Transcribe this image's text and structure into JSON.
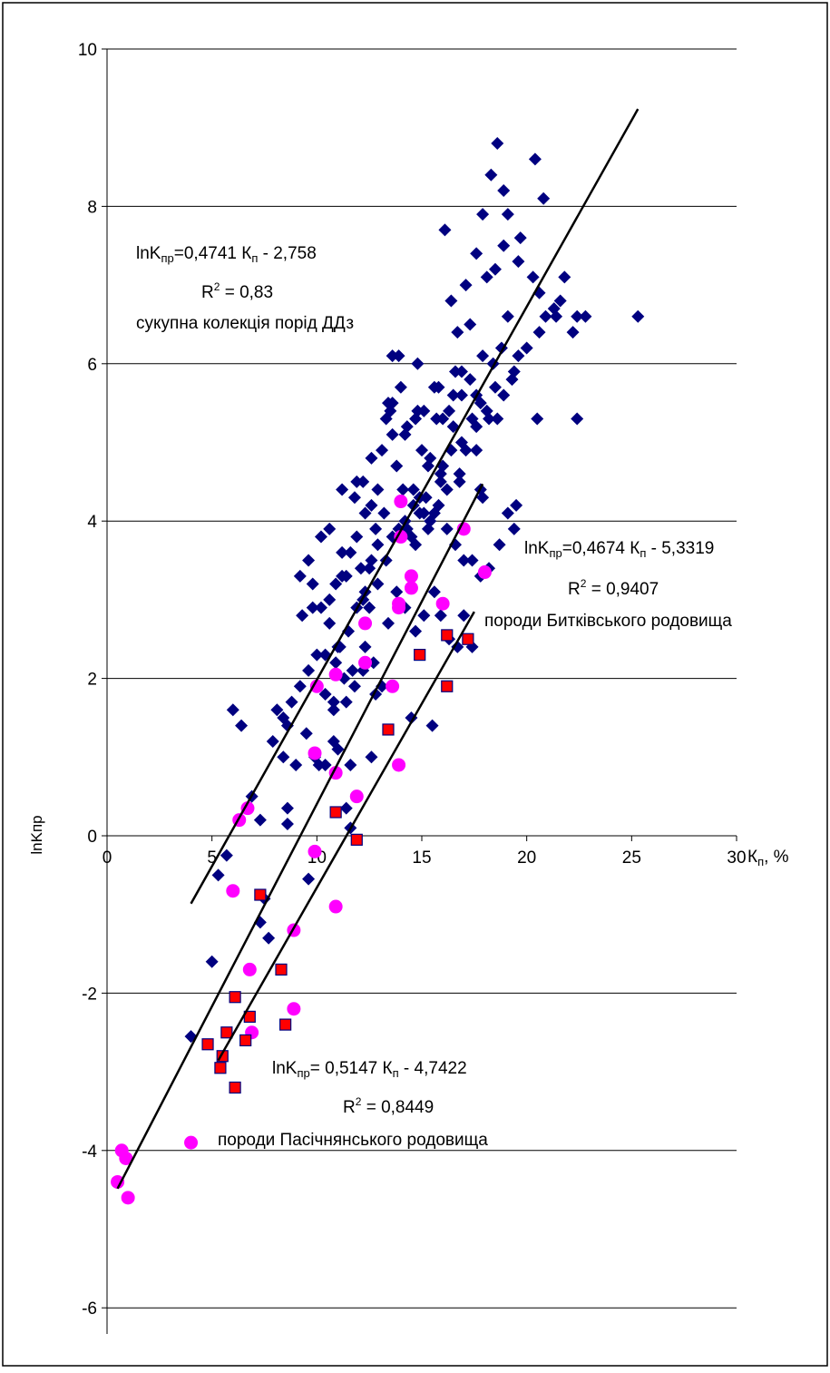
{
  "chart_data": {
    "type": "scatter",
    "xlabel_main": "К",
    "xlabel_sub": "п",
    "xlabel_unit": ", %",
    "ylabel": "lnKпр",
    "xlim": [
      0,
      30
    ],
    "ylim": [
      -6,
      10
    ],
    "xticks": [
      "0",
      "5",
      "10",
      "15",
      "20",
      "25",
      "30"
    ],
    "yticks": [
      "10",
      "8",
      "6",
      "4",
      "2",
      "0",
      "-2",
      "-4",
      "-6"
    ],
    "grid": true,
    "colors": {
      "diamond": "#000080",
      "circle": "#ff00ff",
      "square": "#ff0000",
      "square_edge": "#000080",
      "line": "#000000"
    },
    "series": [
      {
        "marker": "diamond",
        "points": [
          [
            4,
            -2.55
          ],
          [
            5,
            -1.6
          ],
          [
            5.3,
            -0.5
          ],
          [
            5.7,
            -0.25
          ],
          [
            6,
            1.6
          ],
          [
            6.4,
            1.4
          ],
          [
            6.9,
            0.5
          ],
          [
            7.3,
            0.2
          ],
          [
            7.5,
            -0.8
          ],
          [
            7.3,
            -1.1
          ],
          [
            7.7,
            -1.3
          ],
          [
            8.1,
            1.6
          ],
          [
            8.6,
            1.4
          ],
          [
            9.3,
            2.8
          ],
          [
            9.8,
            2.9
          ],
          [
            8.6,
            0.35
          ],
          [
            8.6,
            0.15
          ],
          [
            9.6,
            -0.55
          ],
          [
            10.1,
            0.9
          ],
          [
            10.4,
            0.9
          ],
          [
            10.8,
            1.2
          ],
          [
            11,
            1.1
          ],
          [
            11.4,
            0.35
          ],
          [
            11.8,
            1.9
          ],
          [
            10.8,
            1.6
          ],
          [
            10.8,
            1.7
          ],
          [
            10.4,
            1.8
          ],
          [
            11.1,
            2.4
          ],
          [
            11.2,
            3.6
          ],
          [
            11.4,
            3.3
          ],
          [
            12.3,
            2.4
          ],
          [
            12.5,
            3.4
          ],
          [
            12.8,
            1.8
          ],
          [
            13.1,
            1.9
          ],
          [
            12.6,
            1
          ],
          [
            11.4,
            1.7
          ],
          [
            11.6,
            0.9
          ],
          [
            11.6,
            0.1
          ],
          [
            11.9,
            4.5
          ],
          [
            12.1,
            3.4
          ],
          [
            12.3,
            3.1
          ],
          [
            12.8,
            3.9
          ],
          [
            13.2,
            4.1
          ],
          [
            13.4,
            5.5
          ],
          [
            13.6,
            5.1
          ],
          [
            13.8,
            4.7
          ],
          [
            14.1,
            4.4
          ],
          [
            14.3,
            3.9
          ],
          [
            14.5,
            3.8
          ],
          [
            14.6,
            4.4
          ],
          [
            14.7,
            3.7
          ],
          [
            14.9,
            4.3
          ],
          [
            15.1,
            5.4
          ],
          [
            15.3,
            3.9
          ],
          [
            15.6,
            4.1
          ],
          [
            15.9,
            4.5
          ],
          [
            16.2,
            4.4
          ],
          [
            16.5,
            5.2
          ],
          [
            16.8,
            4.6
          ],
          [
            17.1,
            4.9
          ],
          [
            17.4,
            5.3
          ],
          [
            17.8,
            5.5
          ],
          [
            18.1,
            5.4
          ],
          [
            18.6,
            5.3
          ],
          [
            18.9,
            5.6
          ],
          [
            19.3,
            5.8
          ],
          [
            19.6,
            6.1
          ],
          [
            20,
            6.2
          ],
          [
            20.6,
            6.4
          ],
          [
            20.9,
            6.6
          ],
          [
            21.3,
            6.7
          ],
          [
            21.6,
            6.8
          ],
          [
            22.2,
            6.4
          ],
          [
            22.4,
            6.6
          ],
          [
            22.8,
            6.6
          ],
          [
            16.1,
            7.7
          ],
          [
            16.4,
            6.8
          ],
          [
            16.7,
            6.4
          ],
          [
            17.1,
            7
          ],
          [
            17.3,
            6.5
          ],
          [
            17.6,
            7.4
          ],
          [
            17.9,
            7.9
          ],
          [
            18.3,
            8.4
          ],
          [
            18.6,
            8.8
          ],
          [
            18.9,
            8.2
          ],
          [
            19.1,
            7.9
          ],
          [
            18.9,
            7.5
          ],
          [
            18.5,
            7.2
          ],
          [
            18.1,
            7.1
          ],
          [
            20.4,
            8.6
          ],
          [
            20.8,
            8.1
          ],
          [
            20.3,
            7.1
          ],
          [
            19.6,
            7.3
          ],
          [
            19.1,
            6.6
          ],
          [
            18.8,
            6.2
          ],
          [
            18.4,
            6
          ],
          [
            17.9,
            6.1
          ],
          [
            17.6,
            5.6
          ],
          [
            17.3,
            5.8
          ],
          [
            16.9,
            5.9
          ],
          [
            16.6,
            5.9
          ],
          [
            16.3,
            5.4
          ],
          [
            16,
            5.3
          ],
          [
            15.7,
            5.3
          ],
          [
            15.4,
            4.8
          ],
          [
            15,
            4.9
          ],
          [
            14.7,
            5.3
          ],
          [
            14.3,
            5.2
          ],
          [
            14,
            5.7
          ],
          [
            13.6,
            5.5
          ],
          [
            13.3,
            5.3
          ],
          [
            12.9,
            4.4
          ],
          [
            12.6,
            4.2
          ],
          [
            12.3,
            4.1
          ],
          [
            11.9,
            3.8
          ],
          [
            11.6,
            3.6
          ],
          [
            11.2,
            3.3
          ],
          [
            10.9,
            3.2
          ],
          [
            10.6,
            3
          ],
          [
            15.4,
            4
          ],
          [
            15.8,
            4.2
          ],
          [
            16.2,
            3.9
          ],
          [
            16.6,
            3.7
          ],
          [
            17,
            3.5
          ],
          [
            17.4,
            3.5
          ],
          [
            17.8,
            3.3
          ],
          [
            18.2,
            3.4
          ],
          [
            18.7,
            3.7
          ],
          [
            19.1,
            4.1
          ],
          [
            19.5,
            4.2
          ],
          [
            15.6,
            3.1
          ],
          [
            15.9,
            2.8
          ],
          [
            16.3,
            2.5
          ],
          [
            16.7,
            2.4
          ],
          [
            17,
            2.8
          ],
          [
            17.4,
            2.4
          ],
          [
            15.1,
            2.8
          ],
          [
            14.7,
            2.6
          ],
          [
            14.2,
            2.9
          ],
          [
            13.8,
            3.1
          ],
          [
            13.4,
            2.7
          ],
          [
            12.9,
            3.7
          ],
          [
            12.6,
            3.5
          ],
          [
            15.5,
            1.4
          ],
          [
            14.5,
            1.5
          ],
          [
            16,
            4.7
          ],
          [
            15.3,
            4.7
          ],
          [
            16.4,
            4.9
          ],
          [
            16.9,
            5
          ],
          [
            17.6,
            4.9
          ],
          [
            16.8,
            4.5
          ],
          [
            15.9,
            4.6
          ],
          [
            15.1,
            4.1
          ],
          [
            15.2,
            4.3
          ],
          [
            14.9,
            4.1
          ],
          [
            14.6,
            4.2
          ],
          [
            14.2,
            4
          ],
          [
            13.9,
            3.9
          ],
          [
            17.8,
            4.4
          ],
          [
            17.9,
            4.3
          ],
          [
            14.8,
            6
          ],
          [
            13.5,
            5.4
          ],
          [
            15.8,
            5.7
          ],
          [
            19.4,
            3.9
          ],
          [
            20.5,
            5.3
          ],
          [
            22.4,
            5.3
          ],
          [
            25.3,
            6.6
          ],
          [
            21.4,
            6.6
          ],
          [
            21.8,
            7.1
          ],
          [
            19.7,
            7.6
          ],
          [
            20.6,
            6.9
          ],
          [
            19.4,
            5.9
          ],
          [
            18.5,
            5.7
          ],
          [
            18.2,
            5.3
          ],
          [
            17.6,
            5.2
          ],
          [
            16.9,
            5.6
          ],
          [
            16.5,
            5.6
          ],
          [
            15.6,
            5.7
          ],
          [
            14.8,
            5.4
          ],
          [
            14.2,
            5.1
          ],
          [
            13.9,
            6.1
          ],
          [
            13.6,
            6.1
          ],
          [
            13.1,
            4.9
          ],
          [
            12.6,
            4.8
          ],
          [
            12.2,
            4.5
          ],
          [
            11.8,
            4.3
          ],
          [
            11.2,
            4.4
          ],
          [
            10.6,
            3.9
          ],
          [
            10.2,
            3.8
          ],
          [
            9.6,
            3.5
          ],
          [
            9.2,
            3.3
          ],
          [
            9.8,
            3.2
          ],
          [
            10.2,
            2.9
          ],
          [
            10.6,
            2.7
          ],
          [
            11,
            2.4
          ],
          [
            11.5,
            2.6
          ],
          [
            11.9,
            2.9
          ],
          [
            12.2,
            3
          ],
          [
            12.5,
            2.9
          ],
          [
            12.9,
            3.2
          ],
          [
            13.3,
            3.5
          ],
          [
            13.6,
            3.8
          ],
          [
            12.7,
            2.2
          ],
          [
            12.2,
            2.1
          ],
          [
            11.7,
            2.1
          ],
          [
            11.3,
            2
          ],
          [
            10.9,
            2.2
          ],
          [
            10.4,
            2.3
          ],
          [
            10,
            2.3
          ],
          [
            9.6,
            2.1
          ],
          [
            9.2,
            1.9
          ],
          [
            8.8,
            1.7
          ],
          [
            8.4,
            1.5
          ],
          [
            8.4,
            1
          ],
          [
            9,
            0.9
          ],
          [
            9.5,
            1.3
          ],
          [
            9.9,
            1
          ],
          [
            7.9,
            1.2
          ]
        ]
      },
      {
        "marker": "circle",
        "points": [
          [
            0.5,
            -4.4
          ],
          [
            0.7,
            -4
          ],
          [
            0.9,
            -4.1
          ],
          [
            1,
            -4.6
          ],
          [
            4,
            -3.9
          ],
          [
            6.3,
            0.2
          ],
          [
            6.7,
            0.35
          ],
          [
            6,
            -0.7
          ],
          [
            6.8,
            -1.7
          ],
          [
            6.9,
            -2.5
          ],
          [
            8.9,
            -1.2
          ],
          [
            8.9,
            -2.2
          ],
          [
            9.9,
            -0.2
          ],
          [
            9.9,
            1.05
          ],
          [
            10,
            1.9
          ],
          [
            10.9,
            0.8
          ],
          [
            10.9,
            -0.9
          ],
          [
            10.9,
            2.05
          ],
          [
            11.9,
            0.5
          ],
          [
            12.3,
            2.7
          ],
          [
            12.3,
            2.2
          ],
          [
            13.6,
            1.9
          ],
          [
            13.9,
            0.9
          ],
          [
            13.9,
            2.9
          ],
          [
            13.9,
            2.95
          ],
          [
            14,
            3.8
          ],
          [
            14,
            4.25
          ],
          [
            14.5,
            3.15
          ],
          [
            14.5,
            3.3
          ],
          [
            16,
            2.95
          ],
          [
            17,
            3.9
          ],
          [
            18,
            3.35
          ]
        ]
      },
      {
        "marker": "square",
        "points": [
          [
            4.8,
            -2.65
          ],
          [
            5.4,
            -2.95
          ],
          [
            5.5,
            -2.8
          ],
          [
            5.7,
            -2.5
          ],
          [
            6.1,
            -3.2
          ],
          [
            6.1,
            -2.05
          ],
          [
            6.6,
            -2.6
          ],
          [
            6.8,
            -2.3
          ],
          [
            7.3,
            -0.75
          ],
          [
            8.3,
            -1.7
          ],
          [
            8.5,
            -2.4
          ],
          [
            10.9,
            0.3
          ],
          [
            11.9,
            -0.05
          ],
          [
            13.4,
            1.35
          ],
          [
            14.9,
            2.3
          ],
          [
            16.2,
            1.9
          ],
          [
            16.2,
            2.55
          ],
          [
            17.2,
            2.5
          ]
        ]
      }
    ],
    "trendlines": [
      {
        "x_range": [
          4,
          25.3
        ],
        "equation_prefix": "lnK",
        "equation_sub": "пр",
        "equation_mid": "=0,4741 К",
        "equation_sub2": "п",
        "equation_suffix": " - 2,758",
        "r2_label": "R",
        "r2_value": " = 0,83",
        "caption": "сукупна колекція порід ДДз"
      },
      {
        "x_range": [
          5.3,
          17.5
        ],
        "equation_prefix": "lnK",
        "equation_sub": "пр",
        "equation_mid": "=0,4674 К",
        "equation_sub2": "п",
        "equation_suffix": " - 5,3319",
        "r2_label": "R",
        "r2_value": " = 0,9407",
        "caption": "породи Битківського родовища"
      },
      {
        "x_range": [
          0.5,
          17.9
        ],
        "equation_prefix": "lnK",
        "equation_sub": "пр",
        "equation_mid": "= 0,5147 К",
        "equation_sub2": "п",
        "equation_suffix": " - 4,7422",
        "r2_label": "R",
        "r2_value": " = 0,8449",
        "caption": "породи Пасічнянського родовища"
      }
    ]
  }
}
